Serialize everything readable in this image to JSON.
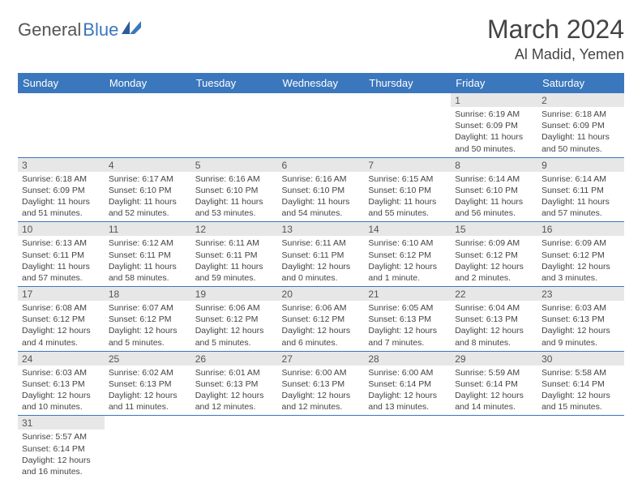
{
  "logo": {
    "part1": "General",
    "part2": "Blue",
    "accent_color": "#3b77bd"
  },
  "title": "March 2024",
  "location": "Al Madid, Yemen",
  "header_bg": "#3b77bd",
  "daynum_bg": "#e7e7e7",
  "border_color": "#3b77bd",
  "day_headers": [
    "Sunday",
    "Monday",
    "Tuesday",
    "Wednesday",
    "Thursday",
    "Friday",
    "Saturday"
  ],
  "weeks": [
    [
      {
        "n": "",
        "sr": "",
        "ss": "",
        "dl": ""
      },
      {
        "n": "",
        "sr": "",
        "ss": "",
        "dl": ""
      },
      {
        "n": "",
        "sr": "",
        "ss": "",
        "dl": ""
      },
      {
        "n": "",
        "sr": "",
        "ss": "",
        "dl": ""
      },
      {
        "n": "",
        "sr": "",
        "ss": "",
        "dl": ""
      },
      {
        "n": "1",
        "sr": "Sunrise: 6:19 AM",
        "ss": "Sunset: 6:09 PM",
        "dl": "Daylight: 11 hours and 50 minutes."
      },
      {
        "n": "2",
        "sr": "Sunrise: 6:18 AM",
        "ss": "Sunset: 6:09 PM",
        "dl": "Daylight: 11 hours and 50 minutes."
      }
    ],
    [
      {
        "n": "3",
        "sr": "Sunrise: 6:18 AM",
        "ss": "Sunset: 6:09 PM",
        "dl": "Daylight: 11 hours and 51 minutes."
      },
      {
        "n": "4",
        "sr": "Sunrise: 6:17 AM",
        "ss": "Sunset: 6:10 PM",
        "dl": "Daylight: 11 hours and 52 minutes."
      },
      {
        "n": "5",
        "sr": "Sunrise: 6:16 AM",
        "ss": "Sunset: 6:10 PM",
        "dl": "Daylight: 11 hours and 53 minutes."
      },
      {
        "n": "6",
        "sr": "Sunrise: 6:16 AM",
        "ss": "Sunset: 6:10 PM",
        "dl": "Daylight: 11 hours and 54 minutes."
      },
      {
        "n": "7",
        "sr": "Sunrise: 6:15 AM",
        "ss": "Sunset: 6:10 PM",
        "dl": "Daylight: 11 hours and 55 minutes."
      },
      {
        "n": "8",
        "sr": "Sunrise: 6:14 AM",
        "ss": "Sunset: 6:10 PM",
        "dl": "Daylight: 11 hours and 56 minutes."
      },
      {
        "n": "9",
        "sr": "Sunrise: 6:14 AM",
        "ss": "Sunset: 6:11 PM",
        "dl": "Daylight: 11 hours and 57 minutes."
      }
    ],
    [
      {
        "n": "10",
        "sr": "Sunrise: 6:13 AM",
        "ss": "Sunset: 6:11 PM",
        "dl": "Daylight: 11 hours and 57 minutes."
      },
      {
        "n": "11",
        "sr": "Sunrise: 6:12 AM",
        "ss": "Sunset: 6:11 PM",
        "dl": "Daylight: 11 hours and 58 minutes."
      },
      {
        "n": "12",
        "sr": "Sunrise: 6:11 AM",
        "ss": "Sunset: 6:11 PM",
        "dl": "Daylight: 11 hours and 59 minutes."
      },
      {
        "n": "13",
        "sr": "Sunrise: 6:11 AM",
        "ss": "Sunset: 6:11 PM",
        "dl": "Daylight: 12 hours and 0 minutes."
      },
      {
        "n": "14",
        "sr": "Sunrise: 6:10 AM",
        "ss": "Sunset: 6:12 PM",
        "dl": "Daylight: 12 hours and 1 minute."
      },
      {
        "n": "15",
        "sr": "Sunrise: 6:09 AM",
        "ss": "Sunset: 6:12 PM",
        "dl": "Daylight: 12 hours and 2 minutes."
      },
      {
        "n": "16",
        "sr": "Sunrise: 6:09 AM",
        "ss": "Sunset: 6:12 PM",
        "dl": "Daylight: 12 hours and 3 minutes."
      }
    ],
    [
      {
        "n": "17",
        "sr": "Sunrise: 6:08 AM",
        "ss": "Sunset: 6:12 PM",
        "dl": "Daylight: 12 hours and 4 minutes."
      },
      {
        "n": "18",
        "sr": "Sunrise: 6:07 AM",
        "ss": "Sunset: 6:12 PM",
        "dl": "Daylight: 12 hours and 5 minutes."
      },
      {
        "n": "19",
        "sr": "Sunrise: 6:06 AM",
        "ss": "Sunset: 6:12 PM",
        "dl": "Daylight: 12 hours and 5 minutes."
      },
      {
        "n": "20",
        "sr": "Sunrise: 6:06 AM",
        "ss": "Sunset: 6:12 PM",
        "dl": "Daylight: 12 hours and 6 minutes."
      },
      {
        "n": "21",
        "sr": "Sunrise: 6:05 AM",
        "ss": "Sunset: 6:13 PM",
        "dl": "Daylight: 12 hours and 7 minutes."
      },
      {
        "n": "22",
        "sr": "Sunrise: 6:04 AM",
        "ss": "Sunset: 6:13 PM",
        "dl": "Daylight: 12 hours and 8 minutes."
      },
      {
        "n": "23",
        "sr": "Sunrise: 6:03 AM",
        "ss": "Sunset: 6:13 PM",
        "dl": "Daylight: 12 hours and 9 minutes."
      }
    ],
    [
      {
        "n": "24",
        "sr": "Sunrise: 6:03 AM",
        "ss": "Sunset: 6:13 PM",
        "dl": "Daylight: 12 hours and 10 minutes."
      },
      {
        "n": "25",
        "sr": "Sunrise: 6:02 AM",
        "ss": "Sunset: 6:13 PM",
        "dl": "Daylight: 12 hours and 11 minutes."
      },
      {
        "n": "26",
        "sr": "Sunrise: 6:01 AM",
        "ss": "Sunset: 6:13 PM",
        "dl": "Daylight: 12 hours and 12 minutes."
      },
      {
        "n": "27",
        "sr": "Sunrise: 6:00 AM",
        "ss": "Sunset: 6:13 PM",
        "dl": "Daylight: 12 hours and 12 minutes."
      },
      {
        "n": "28",
        "sr": "Sunrise: 6:00 AM",
        "ss": "Sunset: 6:14 PM",
        "dl": "Daylight: 12 hours and 13 minutes."
      },
      {
        "n": "29",
        "sr": "Sunrise: 5:59 AM",
        "ss": "Sunset: 6:14 PM",
        "dl": "Daylight: 12 hours and 14 minutes."
      },
      {
        "n": "30",
        "sr": "Sunrise: 5:58 AM",
        "ss": "Sunset: 6:14 PM",
        "dl": "Daylight: 12 hours and 15 minutes."
      }
    ],
    [
      {
        "n": "31",
        "sr": "Sunrise: 5:57 AM",
        "ss": "Sunset: 6:14 PM",
        "dl": "Daylight: 12 hours and 16 minutes."
      },
      {
        "n": "",
        "sr": "",
        "ss": "",
        "dl": ""
      },
      {
        "n": "",
        "sr": "",
        "ss": "",
        "dl": ""
      },
      {
        "n": "",
        "sr": "",
        "ss": "",
        "dl": ""
      },
      {
        "n": "",
        "sr": "",
        "ss": "",
        "dl": ""
      },
      {
        "n": "",
        "sr": "",
        "ss": "",
        "dl": ""
      },
      {
        "n": "",
        "sr": "",
        "ss": "",
        "dl": ""
      }
    ]
  ]
}
